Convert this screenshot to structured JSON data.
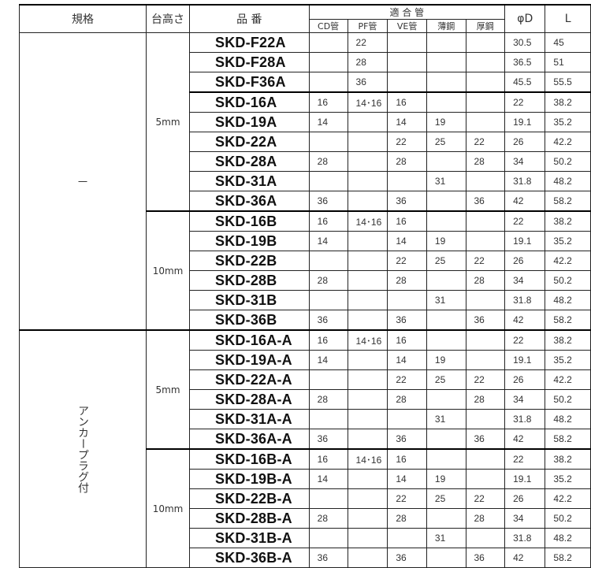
{
  "header": {
    "spec": "規格",
    "height": "台高さ",
    "part_no": "品 番",
    "compatible": "適 合 管",
    "sub": [
      "CD管",
      "PF管",
      "VE管",
      "薄鋼",
      "厚鋼"
    ],
    "phiD": "φD",
    "L": "L"
  },
  "specs": [
    {
      "label": "一",
      "rows": 15
    },
    {
      "label": "アンカープラグ付",
      "rows": 12
    }
  ],
  "heights": [
    {
      "label": "5mm",
      "rows": 9
    },
    {
      "label": "10mm",
      "rows": 6
    },
    {
      "label": "5mm",
      "rows": 6
    },
    {
      "label": "10mm",
      "rows": 6
    }
  ],
  "rows": [
    [
      "SKD-F22A",
      "",
      "22",
      "",
      "",
      "",
      "30.5",
      "45"
    ],
    [
      "SKD-F28A",
      "",
      "28",
      "",
      "",
      "",
      "36.5",
      "51"
    ],
    [
      "SKD-F36A",
      "",
      "36",
      "",
      "",
      "",
      "45.5",
      "55.5"
    ],
    [
      "SKD-16A",
      "16",
      "14･16",
      "16",
      "",
      "",
      "22",
      "38.2"
    ],
    [
      "SKD-19A",
      "14",
      "",
      "14",
      "19",
      "",
      "19.1",
      "35.2"
    ],
    [
      "SKD-22A",
      "",
      "",
      "22",
      "25",
      "22",
      "26",
      "42.2"
    ],
    [
      "SKD-28A",
      "28",
      "",
      "28",
      "",
      "28",
      "34",
      "50.2"
    ],
    [
      "SKD-31A",
      "",
      "",
      "",
      "31",
      "",
      "31.8",
      "48.2"
    ],
    [
      "SKD-36A",
      "36",
      "",
      "36",
      "",
      "36",
      "42",
      "58.2"
    ],
    [
      "SKD-16B",
      "16",
      "14･16",
      "16",
      "",
      "",
      "22",
      "38.2"
    ],
    [
      "SKD-19B",
      "14",
      "",
      "14",
      "19",
      "",
      "19.1",
      "35.2"
    ],
    [
      "SKD-22B",
      "",
      "",
      "22",
      "25",
      "22",
      "26",
      "42.2"
    ],
    [
      "SKD-28B",
      "28",
      "",
      "28",
      "",
      "28",
      "34",
      "50.2"
    ],
    [
      "SKD-31B",
      "",
      "",
      "",
      "31",
      "",
      "31.8",
      "48.2"
    ],
    [
      "SKD-36B",
      "36",
      "",
      "36",
      "",
      "36",
      "42",
      "58.2"
    ],
    [
      "SKD-16A-A",
      "16",
      "14･16",
      "16",
      "",
      "",
      "22",
      "38.2"
    ],
    [
      "SKD-19A-A",
      "14",
      "",
      "14",
      "19",
      "",
      "19.1",
      "35.2"
    ],
    [
      "SKD-22A-A",
      "",
      "",
      "22",
      "25",
      "22",
      "26",
      "42.2"
    ],
    [
      "SKD-28A-A",
      "28",
      "",
      "28",
      "",
      "28",
      "34",
      "50.2"
    ],
    [
      "SKD-31A-A",
      "",
      "",
      "",
      "31",
      "",
      "31.8",
      "48.2"
    ],
    [
      "SKD-36A-A",
      "36",
      "",
      "36",
      "",
      "36",
      "42",
      "58.2"
    ],
    [
      "SKD-16B-A",
      "16",
      "14･16",
      "16",
      "",
      "",
      "22",
      "38.2"
    ],
    [
      "SKD-19B-A",
      "14",
      "",
      "14",
      "19",
      "",
      "19.1",
      "35.2"
    ],
    [
      "SKD-22B-A",
      "",
      "",
      "22",
      "25",
      "22",
      "26",
      "42.2"
    ],
    [
      "SKD-28B-A",
      "28",
      "",
      "28",
      "",
      "28",
      "34",
      "50.2"
    ],
    [
      "SKD-31B-A",
      "",
      "",
      "",
      "31",
      "",
      "31.8",
      "48.2"
    ],
    [
      "SKD-36B-A",
      "36",
      "",
      "36",
      "",
      "36",
      "42",
      "58.2"
    ]
  ]
}
